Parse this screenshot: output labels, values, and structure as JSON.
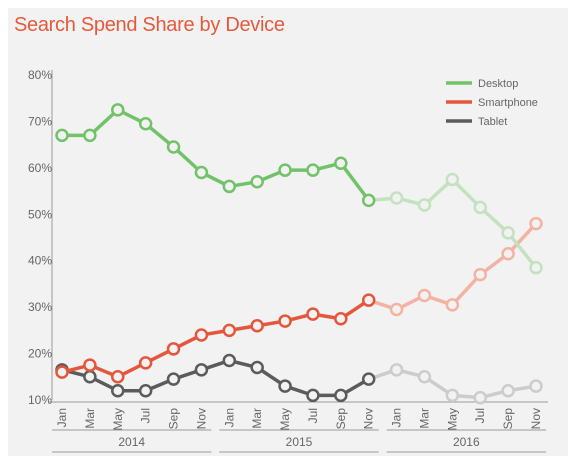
{
  "chart_data": {
    "type": "line",
    "title": "Search Spend Share by Device",
    "xlabel": "",
    "ylabel": "",
    "x": [
      "Jan",
      "Mar",
      "May",
      "Jul",
      "Sep",
      "Nov",
      "Jan",
      "Mar",
      "May",
      "Jul",
      "Sep",
      "Nov",
      "Jan",
      "Mar",
      "May",
      "Jul",
      "Sep",
      "Nov"
    ],
    "years": [
      {
        "label": "2014",
        "start": 0,
        "end": 5
      },
      {
        "label": "2015",
        "start": 6,
        "end": 11
      },
      {
        "label": "2016",
        "start": 12,
        "end": 17
      }
    ],
    "y_ticks": [
      "10%",
      "20%",
      "30%",
      "40%",
      "50%",
      "60%",
      "70%",
      "80%"
    ],
    "ylim": [
      10,
      80
    ],
    "faded_from_index": 11,
    "grid": false,
    "legend_position": "top-right",
    "series": [
      {
        "name": "Desktop",
        "color": "#72c26a",
        "faded_color": "#c3e2bf",
        "values": [
          67,
          67,
          72.5,
          69.5,
          64.5,
          59,
          56,
          57,
          59.5,
          59.5,
          61,
          53,
          53.5,
          52,
          57.5,
          51.5,
          46,
          38.5
        ]
      },
      {
        "name": "Smartphone",
        "color": "#e5573c",
        "faded_color": "#f2b3a3",
        "values": [
          16,
          17.5,
          15,
          18,
          21,
          24,
          25,
          26,
          27,
          28.5,
          27.5,
          31.5,
          29.5,
          32.5,
          30.5,
          37,
          41.5,
          48
        ]
      },
      {
        "name": "Tablet",
        "color": "#5b5b5b",
        "faded_color": "#cccccc",
        "values": [
          16.5,
          15,
          12,
          12,
          14.5,
          16.5,
          18.5,
          17,
          13,
          11,
          11,
          14.5,
          16.5,
          15,
          11,
          10.5,
          12,
          13
        ]
      }
    ]
  }
}
